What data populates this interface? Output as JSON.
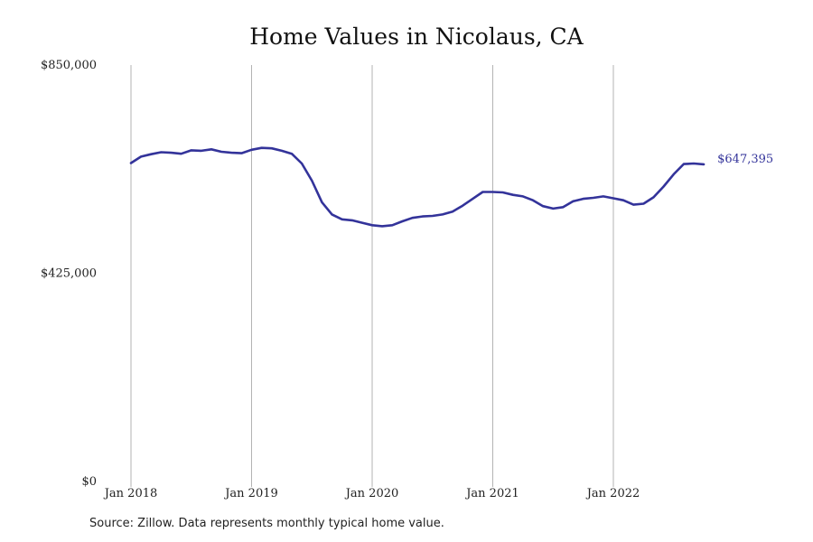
{
  "chart_data": {
    "type": "line",
    "title": "Home Values in Nicolaus, CA",
    "xlabel": "",
    "ylabel": "",
    "ylim": [
      0,
      850000
    ],
    "y_ticks": [
      {
        "value": 0,
        "label": "$0"
      },
      {
        "value": 425000,
        "label": "$425,000"
      },
      {
        "value": 850000,
        "label": "$850,000"
      }
    ],
    "x_ticks": [
      {
        "value": "2018-01",
        "label": "Jan 2018"
      },
      {
        "value": "2019-01",
        "label": "Jan 2019"
      },
      {
        "value": "2020-01",
        "label": "Jan 2020"
      },
      {
        "value": "2021-01",
        "label": "Jan 2021"
      },
      {
        "value": "2022-01",
        "label": "Jan 2022"
      }
    ],
    "grid": {
      "vertical": true,
      "horizontal": false
    },
    "end_label": "$647,395",
    "colors": {
      "line": "#33339a",
      "grid": "#b3b3b3"
    },
    "series": [
      {
        "x": [
          "2018-01",
          "2018-02",
          "2018-03",
          "2018-04",
          "2018-05",
          "2018-06",
          "2018-07",
          "2018-08",
          "2018-09",
          "2018-10",
          "2018-11",
          "2018-12",
          "2019-01",
          "2019-02",
          "2019-03",
          "2019-04",
          "2019-05",
          "2019-06",
          "2019-07",
          "2019-08",
          "2019-09",
          "2019-10",
          "2019-11",
          "2019-12",
          "2020-01",
          "2020-02",
          "2020-03",
          "2020-04",
          "2020-05",
          "2020-06",
          "2020-07",
          "2020-08",
          "2020-09",
          "2020-10",
          "2020-11",
          "2020-12",
          "2021-01",
          "2021-02",
          "2021-03",
          "2021-04",
          "2021-05",
          "2021-06",
          "2021-07",
          "2021-08",
          "2021-09",
          "2021-10",
          "2021-11",
          "2021-12",
          "2022-01",
          "2022-02",
          "2022-03",
          "2022-04",
          "2022-05",
          "2022-06",
          "2022-07",
          "2022-08",
          "2022-09",
          "2022-10"
        ],
        "values": [
          650000,
          663000,
          668000,
          672000,
          671000,
          669000,
          676000,
          675000,
          678000,
          673000,
          671000,
          670000,
          677000,
          681000,
          680000,
          675000,
          669000,
          649000,
          614000,
          570000,
          545000,
          535000,
          533000,
          528000,
          523000,
          521000,
          523000,
          531000,
          538000,
          541000,
          542000,
          545000,
          551000,
          563000,
          577000,
          591000,
          591000,
          590000,
          585000,
          582000,
          574000,
          562000,
          557000,
          560000,
          572000,
          577000,
          579000,
          582000,
          578000,
          574000,
          565000,
          567000,
          580000,
          602000,
          627000,
          648000,
          649000,
          647395
        ]
      }
    ]
  },
  "source": "Source: Zillow. Data represents monthly typical home value."
}
